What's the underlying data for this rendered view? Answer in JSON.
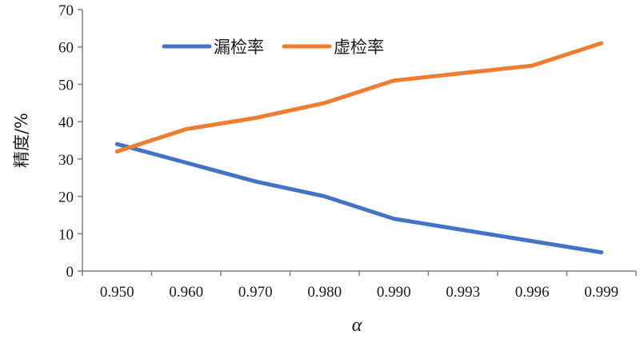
{
  "chart_data": {
    "type": "line",
    "categories": [
      "0.950",
      "0.960",
      "0.970",
      "0.980",
      "0.990",
      "0.993",
      "0.996",
      "0.999"
    ],
    "series": [
      {
        "name": "漏检率",
        "color": "#4472C4",
        "values": [
          34,
          29,
          24,
          20,
          14,
          11,
          8,
          5
        ]
      },
      {
        "name": "虚检率",
        "color": "#ED7D31",
        "values": [
          32,
          38,
          41,
          45,
          51,
          53,
          55,
          61
        ]
      }
    ],
    "xlabel": "α",
    "ylabel": "精度/%",
    "ylim": [
      0,
      70
    ],
    "yticks": [
      0,
      10,
      20,
      30,
      40,
      50,
      60,
      70
    ],
    "grid": false,
    "legend_position": "top-center"
  }
}
